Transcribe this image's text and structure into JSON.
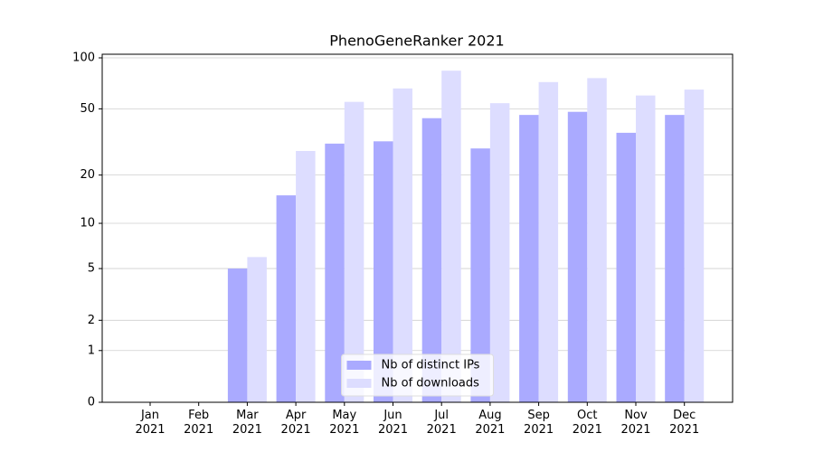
{
  "chart_data": {
    "type": "bar",
    "title": "PhenoGeneRanker 2021",
    "categories": [
      "Jan\n2021",
      "Feb\n2021",
      "Mar\n2021",
      "Apr\n2021",
      "May\n2021",
      "Jun\n2021",
      "Jul\n2021",
      "Aug\n2021",
      "Sep\n2021",
      "Oct\n2021",
      "Nov\n2021",
      "Dec\n2021"
    ],
    "series": [
      {
        "name": "Nb of distinct IPs",
        "color": "#aaaaff",
        "values": [
          0,
          0,
          5,
          15,
          31,
          32,
          44,
          29,
          46,
          48,
          36,
          46
        ]
      },
      {
        "name": "Nb of downloads",
        "color": "#ddddff",
        "values": [
          0,
          0,
          6,
          28,
          55,
          66,
          84,
          54,
          72,
          76,
          60,
          65
        ]
      }
    ],
    "yscale": "log1p",
    "ylim": [
      0,
      105
    ],
    "yticks": [
      0,
      1,
      2,
      5,
      10,
      20,
      50,
      100
    ],
    "grid": true,
    "legend": "lower center"
  }
}
